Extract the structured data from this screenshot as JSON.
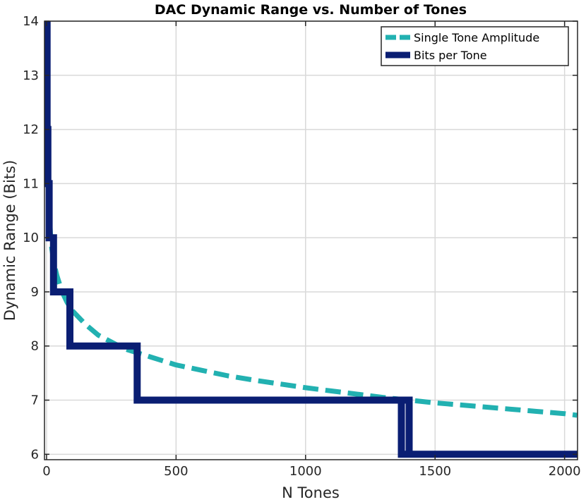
{
  "chart_data": {
    "type": "line",
    "title": "DAC Dynamic Range vs. Number of Tones",
    "xlabel": "N Tones",
    "ylabel": "Dynamic Range (Bits)",
    "xlim": [
      -8,
      2050
    ],
    "ylim": [
      5.9,
      14
    ],
    "xticks": [
      0,
      500,
      1000,
      1500,
      2000
    ],
    "yticks": [
      6,
      7,
      8,
      9,
      10,
      11,
      12,
      13,
      14
    ],
    "grid": true,
    "legend_position": "top-right",
    "series": [
      {
        "name": "Single Tone Amplitude",
        "style": "dashed",
        "color": "#22b1b1",
        "x": [
          1,
          2,
          4,
          6,
          10,
          15,
          20,
          30,
          40,
          60,
          80,
          100,
          150,
          200,
          300,
          400,
          500,
          600,
          700,
          800,
          900,
          1000,
          1100,
          1200,
          1300,
          1400,
          1500,
          1600,
          1700,
          1800,
          1900,
          2000,
          2048
        ],
        "y": [
          14,
          13.5,
          12.0,
          11.3,
          10.5,
          10.1,
          9.8,
          9.5,
          9.3,
          9.0,
          8.8,
          8.65,
          8.4,
          8.2,
          7.95,
          7.8,
          7.65,
          7.55,
          7.45,
          7.37,
          7.3,
          7.23,
          7.17,
          7.11,
          7.05,
          7.0,
          6.95,
          6.91,
          6.87,
          6.83,
          6.79,
          6.75,
          6.72
        ]
      },
      {
        "name": "Bits per Tone",
        "style": "solid",
        "color": "#0a1e73",
        "x": [
          0,
          2,
          2,
          5,
          5,
          10,
          10,
          27,
          27,
          90,
          90,
          350,
          350,
          1370,
          1370,
          1400,
          1400,
          1370,
          1370,
          1400,
          1400,
          2048
        ],
        "y": [
          14,
          14,
          12,
          12,
          11,
          11,
          10,
          10,
          9,
          9,
          8,
          8,
          7,
          7,
          6,
          6,
          7,
          7,
          6,
          6,
          6,
          6
        ]
      }
    ]
  }
}
